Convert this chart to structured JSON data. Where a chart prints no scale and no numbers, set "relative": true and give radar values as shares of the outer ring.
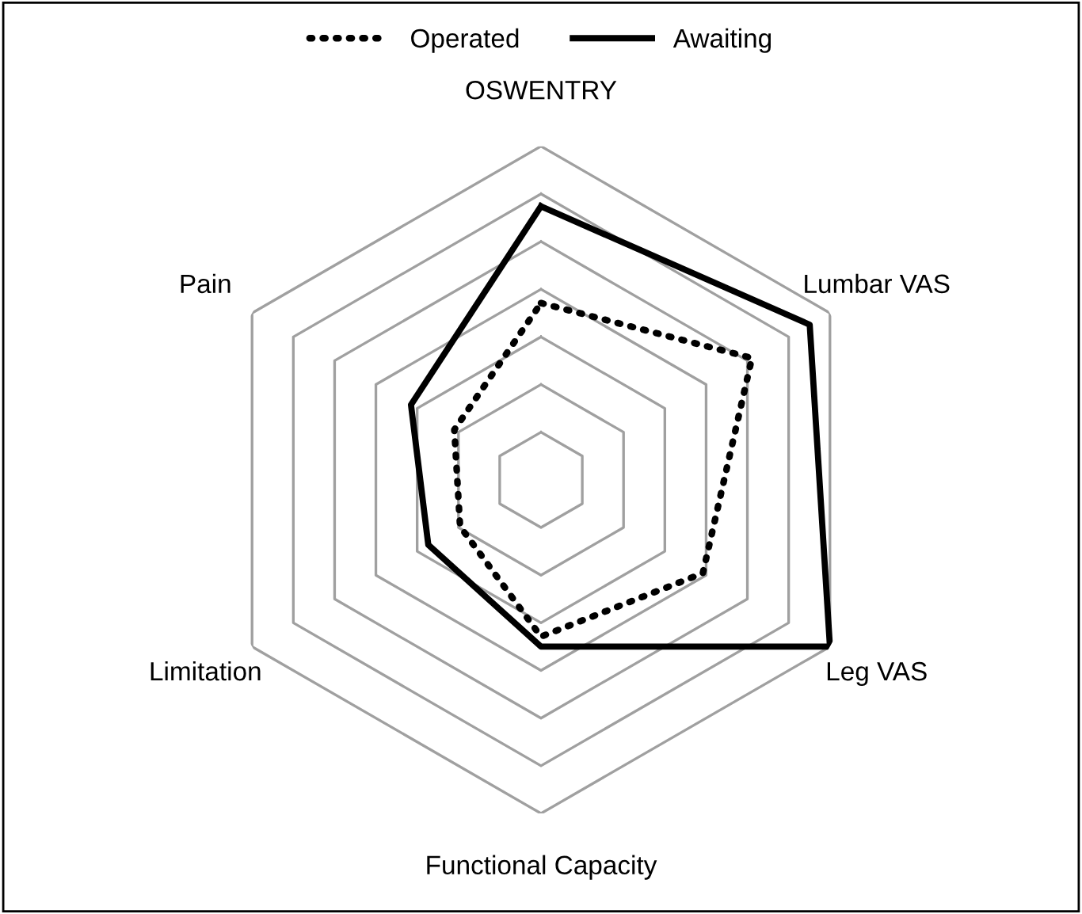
{
  "chart_data": {
    "type": "radar",
    "relative": true,
    "categories": [
      "OSWENTRY",
      "Lumbar VAS",
      "Leg VAS",
      "Functional Capacity",
      "Limitation",
      "Pain"
    ],
    "series": [
      {
        "name": "Operated",
        "color": "#000000",
        "line_style": "dotted",
        "values": [
          0.53,
          0.73,
          0.56,
          0.47,
          0.28,
          0.3
        ]
      },
      {
        "name": "Awaiting",
        "color": "#000000",
        "line_style": "solid",
        "values": [
          0.82,
          0.93,
          1,
          0.5,
          0.39,
          0.45
        ]
      }
    ],
    "grid": true,
    "legend": "top",
    "marker": "none"
  }
}
